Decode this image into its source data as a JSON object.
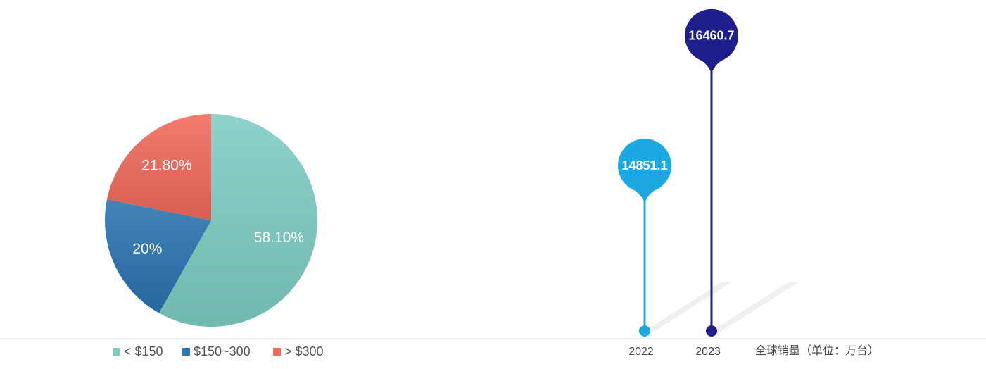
{
  "chart_data": [
    {
      "type": "pie",
      "categories": [
        "< $150",
        "$150~300",
        "> $300"
      ],
      "values": [
        58.1,
        20,
        21.8
      ],
      "value_labels": [
        "58.10%",
        "20%",
        "21.80%"
      ],
      "colors": [
        "#7ecdc3",
        "#2a74b0",
        "#f06a5c"
      ],
      "legend": "bottom"
    },
    {
      "type": "lollipop",
      "categories": [
        "2022",
        "2023"
      ],
      "values": [
        14851.1,
        16460.7
      ],
      "colors": [
        "#1ca8e0",
        "#1e1f8c"
      ],
      "x_label": "全球销量（单位：万台）",
      "ylim": [
        12800,
        16800
      ]
    }
  ]
}
